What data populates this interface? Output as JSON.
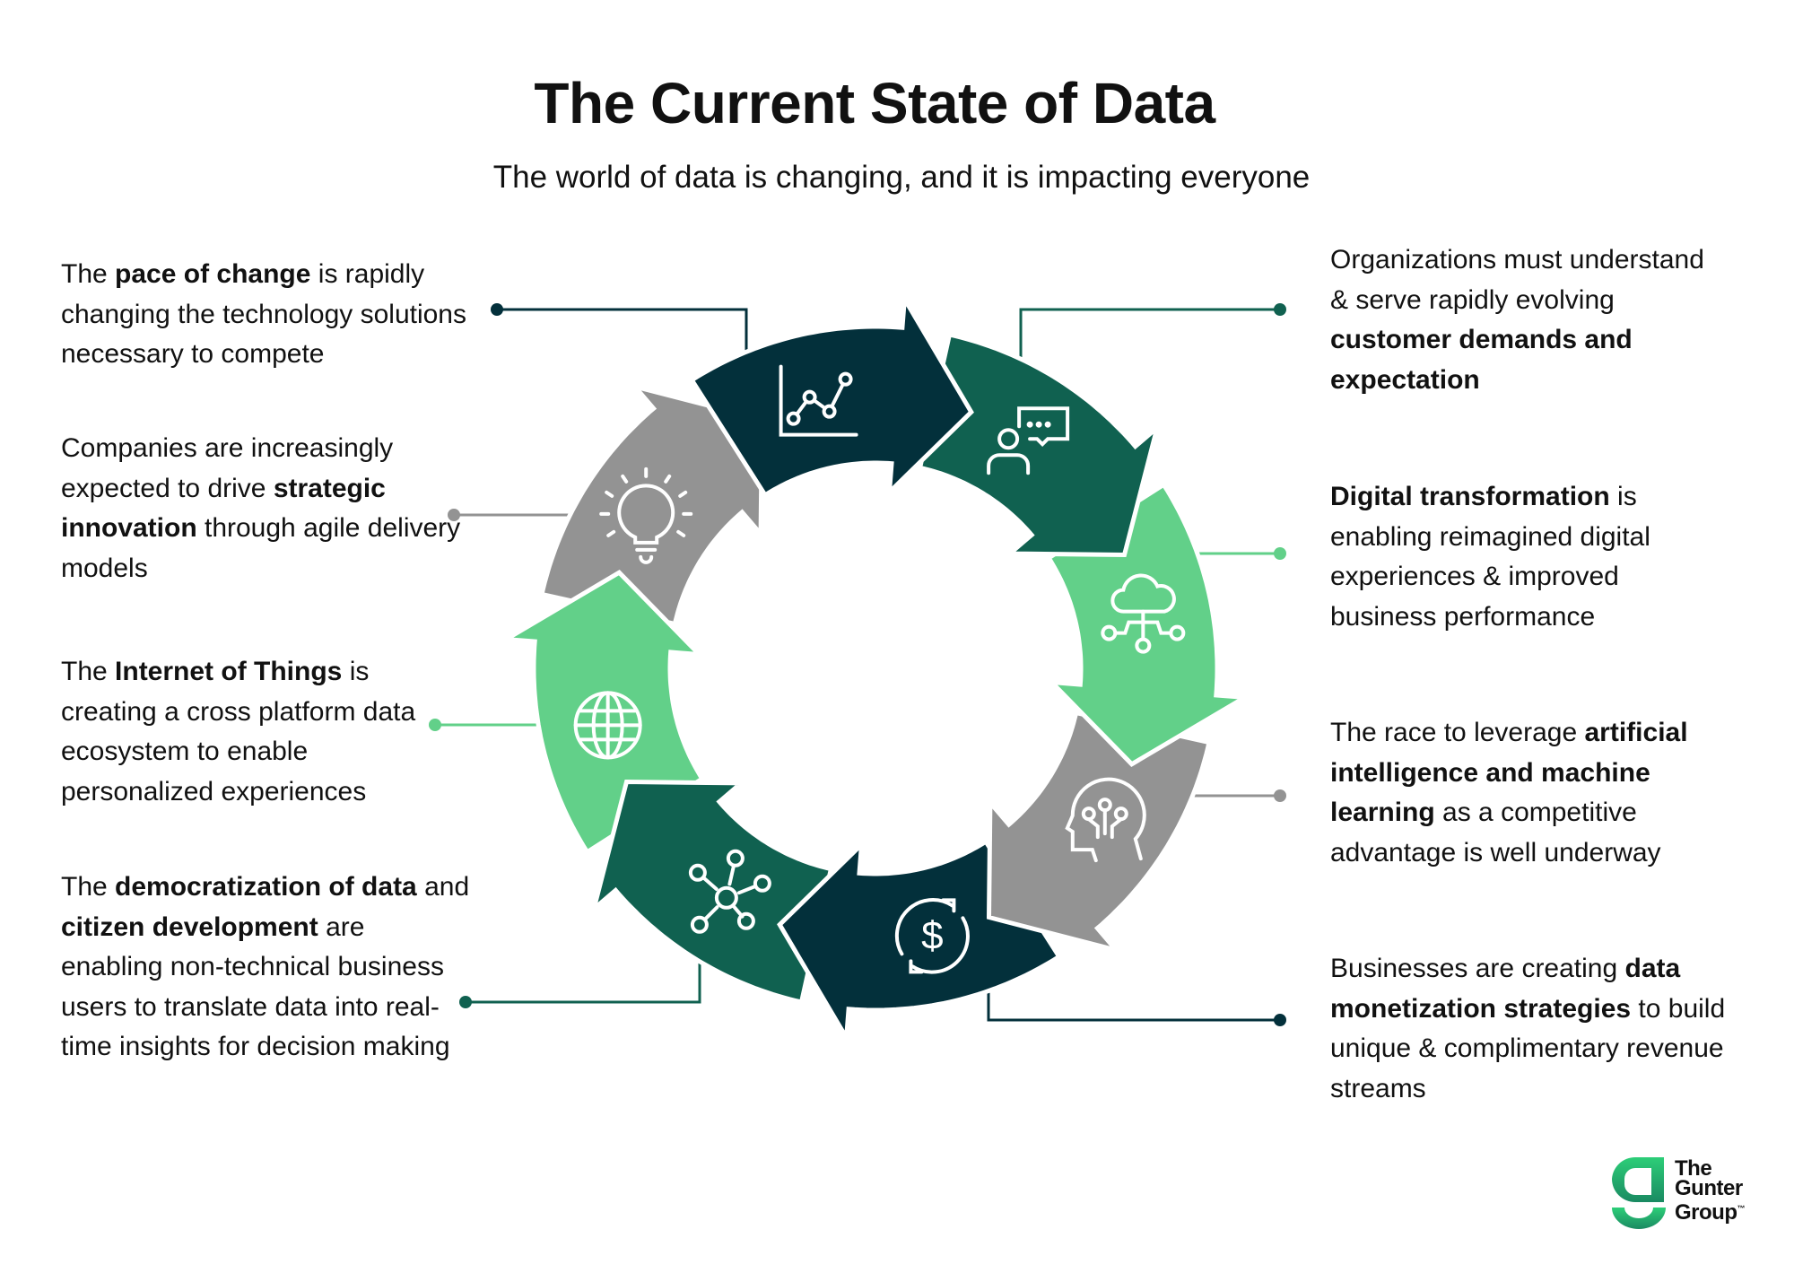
{
  "title": "The Current State of Data",
  "subtitle": "The world of data is changing, and it is impacting everyone",
  "colors": {
    "navy": "#03303b",
    "teal": "#106150",
    "green": "#62d089",
    "gray": "#939393"
  },
  "segments": [
    {
      "color": "navy",
      "icon": "line-chart-icon"
    },
    {
      "color": "teal",
      "icon": "person-chat-icon"
    },
    {
      "color": "green",
      "icon": "cloud-network-icon"
    },
    {
      "color": "gray",
      "icon": "ai-head-icon"
    },
    {
      "color": "navy",
      "icon": "dollar-cycle-icon"
    },
    {
      "color": "teal",
      "icon": "network-hub-icon"
    },
    {
      "color": "green",
      "icon": "globe-icon"
    },
    {
      "color": "gray",
      "icon": "lightbulb-icon"
    }
  ],
  "left_blocks": [
    {
      "parts": [
        {
          "t": "The "
        },
        {
          "t": "pace of change",
          "b": true
        },
        {
          "t": " is rapidly changing the technology solutions necessary to compete"
        }
      ]
    },
    {
      "parts": [
        {
          "t": "Companies are increasingly expected to drive "
        },
        {
          "t": "strategic innovation",
          "b": true
        },
        {
          "t": " through agile delivery models"
        }
      ]
    },
    {
      "parts": [
        {
          "t": "The "
        },
        {
          "t": "Internet of Things",
          "b": true
        },
        {
          "t": " is creating a cross platform data ecosystem to enable personalized experiences"
        }
      ]
    },
    {
      "parts": [
        {
          "t": "The "
        },
        {
          "t": "democratization of data",
          "b": true
        },
        {
          "t": " and "
        },
        {
          "t": "citizen development",
          "b": true
        },
        {
          "t": " are enabling non-technical business users to translate data into real-time insights for decision making"
        }
      ]
    }
  ],
  "right_blocks": [
    {
      "parts": [
        {
          "t": "Organizations must understand & serve rapidly evolving "
        },
        {
          "t": "customer demands and expectation",
          "b": true
        }
      ]
    },
    {
      "parts": [
        {
          "t": "Digital transformation",
          "b": true
        },
        {
          "t": " is enabling reimagined digital experiences & improved business performance"
        }
      ]
    },
    {
      "parts": [
        {
          "t": "The race to leverage "
        },
        {
          "t": "artificial intelligence and machine learning",
          "b": true
        },
        {
          "t": " as a competitive advantage is well underway"
        }
      ]
    },
    {
      "parts": [
        {
          "t": "Businesses are creating "
        },
        {
          "t": "data monetization strategies",
          "b": true
        },
        {
          "t": " to build unique & complimentary revenue streams"
        }
      ]
    }
  ],
  "logo": {
    "line1": "The",
    "line2": "Gunter",
    "line3": "Group",
    "tm": "™"
  }
}
